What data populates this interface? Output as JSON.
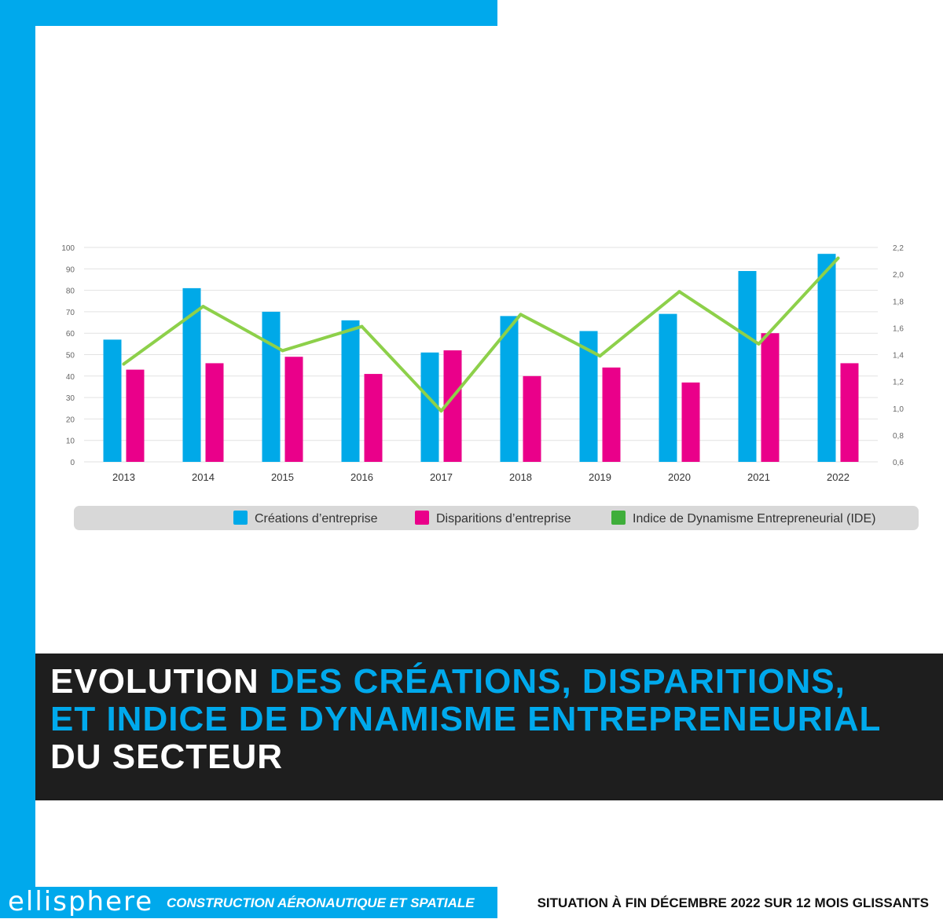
{
  "title": {
    "line1_white": "EVOLUTION",
    "line1_blue": "DES CRÉATIONS, DISPARITIONS,",
    "line2_blue": "ET INDICE DE DYNAMISME ENTREPRENEURIAL",
    "line3_white": "DU SECTEUR"
  },
  "footer": {
    "brand": "ellisphere",
    "sector": "CONSTRUCTION AÉRONAUTIQUE ET SPATIALE",
    "situation": "SITUATION À FIN DÉCEMBRE 2022 SUR 12 MOIS GLISSANTS"
  },
  "colors": {
    "accent_blue": "#00a9ec",
    "creations": "#00a9e8",
    "disparitions": "#ea008a",
    "ide": "#8dd04a",
    "ide_legend": "#3fae3a",
    "band_dark": "#1e1e1e"
  },
  "chart_data": {
    "type": "bar",
    "categories": [
      "2013",
      "2014",
      "2015",
      "2016",
      "2017",
      "2018",
      "2019",
      "2020",
      "2021",
      "2022"
    ],
    "series": [
      {
        "name": "Créations d’entreprise",
        "type": "bar",
        "axis": "left",
        "values": [
          57,
          81,
          70,
          66,
          51,
          68,
          61,
          69,
          89,
          97
        ]
      },
      {
        "name": "Disparitions d’entreprise",
        "type": "bar",
        "axis": "left",
        "values": [
          43,
          46,
          49,
          41,
          52,
          40,
          44,
          37,
          60,
          46
        ]
      },
      {
        "name": "Indice de Dynamisme Entrepreneurial (IDE)",
        "type": "line",
        "axis": "right",
        "values": [
          1.33,
          1.76,
          1.43,
          1.61,
          0.98,
          1.7,
          1.39,
          1.87,
          1.48,
          2.12
        ]
      }
    ],
    "ylim": [
      0,
      100
    ],
    "yticks": [
      "100",
      "90",
      "80",
      "70",
      "60",
      "50",
      "40",
      "30",
      "20",
      "10",
      "0"
    ],
    "y2lim": [
      0.6,
      2.2
    ],
    "y2ticks": [
      "2,2",
      "2,0",
      "1,8",
      "1,6",
      "1,4",
      "1,2",
      "1,0",
      "0,8",
      "0,6"
    ],
    "grid": "horizontal",
    "legend_position": "bottom"
  }
}
